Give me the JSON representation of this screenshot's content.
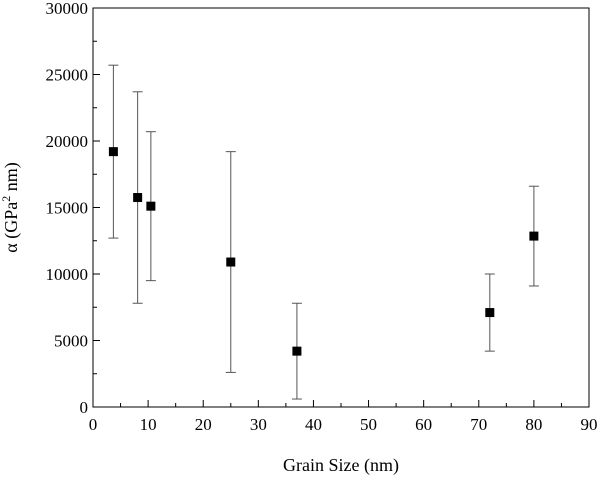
{
  "chart_data": {
    "type": "scatter",
    "title": "",
    "xlabel": "Grain Size (nm)",
    "ylabel_prefix": "α (GPa",
    "ylabel_sup": "2",
    "ylabel_suffix": " nm)",
    "xlim": [
      0,
      90
    ],
    "ylim": [
      0,
      30000
    ],
    "x_ticks": [
      0,
      10,
      20,
      30,
      40,
      50,
      60,
      70,
      80,
      90
    ],
    "y_ticks": [
      0,
      5000,
      10000,
      15000,
      20000,
      25000,
      30000
    ],
    "grid": false,
    "legend": "none",
    "marker": "square",
    "marker_color": "#000000",
    "errorbar_color": "#555555",
    "points": [
      {
        "x": 3.7,
        "y": 19200,
        "err_low": 12700,
        "err_high": 25700
      },
      {
        "x": 8.1,
        "y": 15750,
        "err_low": 7800,
        "err_high": 23700
      },
      {
        "x": 10.5,
        "y": 15100,
        "err_low": 9500,
        "err_high": 20700
      },
      {
        "x": 25.0,
        "y": 10900,
        "err_low": 2600,
        "err_high": 19200
      },
      {
        "x": 37.0,
        "y": 4200,
        "err_low": 600,
        "err_high": 7800
      },
      {
        "x": 72.0,
        "y": 7100,
        "err_low": 4200,
        "err_high": 10000
      },
      {
        "x": 80.0,
        "y": 12850,
        "err_low": 9100,
        "err_high": 16600
      }
    ]
  }
}
